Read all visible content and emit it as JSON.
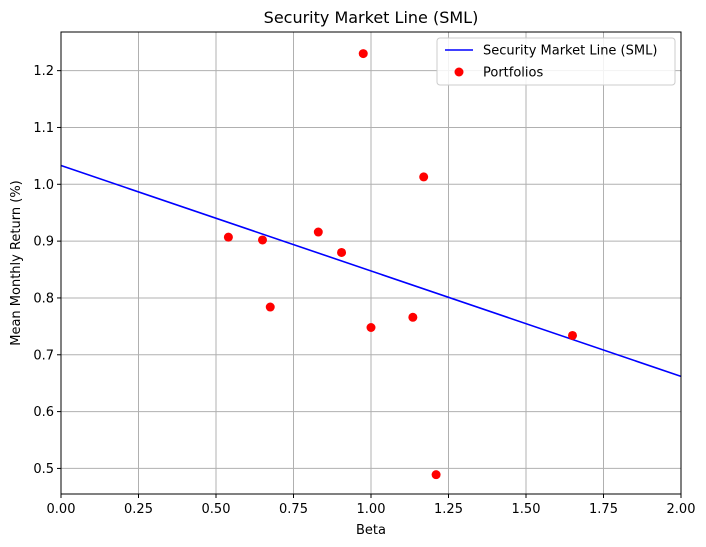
{
  "chart_data": {
    "type": "scatter",
    "title": "Security Market Line (SML)",
    "xlabel": "Beta",
    "ylabel": "Mean Monthly Return (%)",
    "xlim": [
      0.0,
      2.0
    ],
    "ylim": [
      0.455,
      1.268
    ],
    "x_ticks": [
      "0.00",
      "0.25",
      "0.50",
      "0.75",
      "1.00",
      "1.25",
      "1.50",
      "1.75",
      "2.00"
    ],
    "y_ticks": [
      "0.5",
      "0.6",
      "0.7",
      "0.8",
      "0.9",
      "1.0",
      "1.1",
      "1.2"
    ],
    "grid": true,
    "legend_position": "top-right",
    "series": [
      {
        "name": "Security Market Line (SML)",
        "kind": "line",
        "color": "#0000ff",
        "x": [
          0.0,
          2.0
        ],
        "y": [
          1.033,
          0.662
        ]
      },
      {
        "name": "Portfolios",
        "kind": "scatter",
        "color": "#ff0000",
        "x": [
          0.54,
          0.65,
          0.675,
          0.83,
          0.905,
          0.975,
          1.0,
          1.135,
          1.17,
          1.21,
          1.65
        ],
        "y": [
          0.907,
          0.902,
          0.784,
          0.916,
          0.88,
          1.23,
          0.748,
          0.766,
          1.013,
          0.489,
          0.734
        ]
      }
    ]
  }
}
